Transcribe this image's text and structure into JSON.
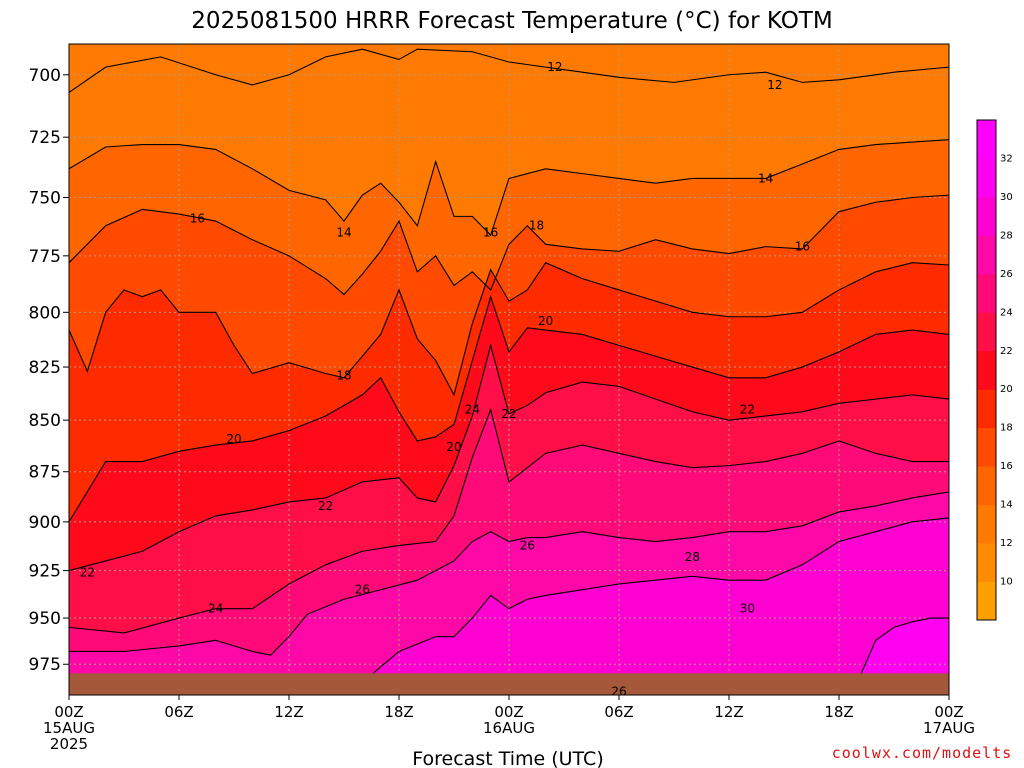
{
  "title": "2025081500 HRRR Forecast Temperature (°C) for KOTM",
  "credit": "coolwx.com/modelts",
  "chart_data": {
    "type": "heatmap",
    "title": "2025081500 HRRR Forecast Temperature (°C) for KOTM",
    "xlabel": "Forecast Time (UTC)",
    "ylabel": "",
    "x_ticks": [
      {
        "t": 0,
        "l1": "00Z",
        "l2": "15AUG",
        "l3": "2025"
      },
      {
        "t": 6,
        "l1": "06Z",
        "l2": "",
        "l3": ""
      },
      {
        "t": 12,
        "l1": "12Z",
        "l2": "",
        "l3": ""
      },
      {
        "t": 18,
        "l1": "18Z",
        "l2": "",
        "l3": ""
      },
      {
        "t": 24,
        "l1": "00Z",
        "l2": "16AUG",
        "l3": ""
      },
      {
        "t": 30,
        "l1": "06Z",
        "l2": "",
        "l3": ""
      },
      {
        "t": 36,
        "l1": "12Z",
        "l2": "",
        "l3": ""
      },
      {
        "t": 42,
        "l1": "18Z",
        "l2": "",
        "l3": ""
      },
      {
        "t": 48,
        "l1": "00Z",
        "l2": "17AUG",
        "l3": ""
      }
    ],
    "xlim": [
      0,
      48
    ],
    "y_ticks": [
      700,
      725,
      750,
      775,
      800,
      825,
      850,
      875,
      900,
      925,
      950,
      975
    ],
    "ylim": [
      688,
      992
    ],
    "y_scale": "log-pressure (inverted)",
    "surface_pressure_hPa": 980,
    "colorbar": {
      "levels": [
        8,
        10,
        12,
        14,
        16,
        18,
        20,
        22,
        24,
        26,
        28,
        30,
        32,
        34
      ],
      "tick_labels": [
        "10",
        "12",
        "14",
        "16",
        "18",
        "20",
        "22",
        "24",
        "26",
        "28",
        "30",
        "32"
      ],
      "colors": [
        "#ff9f00",
        "#ff8c00",
        "#ff7a00",
        "#ff6600",
        "#ff4a00",
        "#ff2b00",
        "#ff0a1a",
        "#ff0e48",
        "#ff0a78",
        "#ff08a8",
        "#ff00d2",
        "#ff00f0",
        "#ff00ff"
      ]
    },
    "series": [
      {
        "name": "",
        "level": 12,
        "points": [
          [
            0,
            707
          ],
          [
            2,
            697
          ],
          [
            5,
            693
          ],
          [
            8,
            700
          ],
          [
            10,
            704
          ],
          [
            12,
            700
          ],
          [
            14,
            693
          ],
          [
            16,
            690
          ],
          [
            18,
            694
          ],
          [
            19,
            690
          ],
          [
            22,
            691
          ],
          [
            24,
            695
          ],
          [
            26,
            697
          ],
          [
            28,
            699
          ],
          [
            30,
            701
          ],
          [
            33,
            703
          ],
          [
            36,
            700
          ],
          [
            38,
            699
          ],
          [
            40,
            703
          ],
          [
            42,
            702
          ],
          [
            45,
            699
          ],
          [
            48,
            697
          ]
        ]
      },
      {
        "name": "",
        "level": 14,
        "points": [
          [
            0,
            738
          ],
          [
            2,
            729
          ],
          [
            4,
            728
          ],
          [
            6,
            728
          ],
          [
            8,
            730
          ],
          [
            10,
            738
          ],
          [
            12,
            747
          ],
          [
            14,
            751
          ],
          [
            15,
            760
          ],
          [
            16,
            749
          ],
          [
            17,
            744
          ],
          [
            18,
            752
          ],
          [
            19,
            762
          ],
          [
            20,
            735
          ],
          [
            21,
            758
          ],
          [
            22,
            758
          ],
          [
            23,
            766
          ],
          [
            24,
            742
          ],
          [
            26,
            738
          ],
          [
            28,
            740
          ],
          [
            30,
            742
          ],
          [
            32,
            744
          ],
          [
            34,
            742
          ],
          [
            36,
            742
          ],
          [
            38,
            742
          ],
          [
            40,
            736
          ],
          [
            42,
            730
          ],
          [
            44,
            728
          ],
          [
            46,
            727
          ],
          [
            48,
            726
          ]
        ]
      },
      {
        "name": "",
        "level": 16,
        "points": [
          [
            0,
            778
          ],
          [
            2,
            762
          ],
          [
            4,
            755
          ],
          [
            6,
            757
          ],
          [
            8,
            760
          ],
          [
            10,
            768
          ],
          [
            12,
            775
          ],
          [
            14,
            785
          ],
          [
            15,
            792
          ],
          [
            16,
            783
          ],
          [
            17,
            773
          ],
          [
            18,
            760
          ],
          [
            19,
            782
          ],
          [
            20,
            775
          ],
          [
            21,
            788
          ],
          [
            22,
            782
          ],
          [
            23,
            790
          ],
          [
            24,
            770
          ],
          [
            25,
            762
          ],
          [
            26,
            770
          ],
          [
            28,
            772
          ],
          [
            30,
            773
          ],
          [
            32,
            768
          ],
          [
            34,
            772
          ],
          [
            36,
            774
          ],
          [
            38,
            771
          ],
          [
            40,
            772
          ],
          [
            42,
            756
          ],
          [
            44,
            752
          ],
          [
            46,
            750
          ],
          [
            48,
            749
          ]
        ]
      },
      {
        "name": "",
        "level": 18,
        "points": [
          [
            0,
            808
          ],
          [
            1,
            827
          ],
          [
            2,
            800
          ],
          [
            3,
            790
          ],
          [
            4,
            793
          ],
          [
            5,
            790
          ],
          [
            6,
            800
          ],
          [
            8,
            800
          ],
          [
            9,
            815
          ],
          [
            10,
            828
          ],
          [
            12,
            823
          ],
          [
            14,
            828
          ],
          [
            15,
            830
          ],
          [
            16,
            820
          ],
          [
            17,
            810
          ],
          [
            18,
            790
          ],
          [
            19,
            812
          ],
          [
            20,
            822
          ],
          [
            21,
            838
          ],
          [
            22,
            805
          ],
          [
            23,
            781
          ],
          [
            24,
            795
          ],
          [
            25,
            790
          ],
          [
            26,
            778
          ],
          [
            28,
            785
          ],
          [
            30,
            790
          ],
          [
            32,
            795
          ],
          [
            34,
            800
          ],
          [
            36,
            802
          ],
          [
            38,
            802
          ],
          [
            40,
            800
          ],
          [
            42,
            790
          ],
          [
            44,
            782
          ],
          [
            46,
            778
          ],
          [
            48,
            779
          ]
        ]
      },
      {
        "name": "",
        "level": 20,
        "points": [
          [
            0,
            900
          ],
          [
            2,
            870
          ],
          [
            4,
            870
          ],
          [
            6,
            865
          ],
          [
            8,
            862
          ],
          [
            10,
            860
          ],
          [
            12,
            855
          ],
          [
            14,
            848
          ],
          [
            16,
            838
          ],
          [
            17,
            830
          ],
          [
            18,
            846
          ],
          [
            19,
            860
          ],
          [
            20,
            858
          ],
          [
            21,
            852
          ],
          [
            22,
            822
          ],
          [
            23,
            793
          ],
          [
            24,
            818
          ],
          [
            25,
            807
          ],
          [
            26,
            808
          ],
          [
            28,
            810
          ],
          [
            30,
            815
          ],
          [
            32,
            820
          ],
          [
            34,
            825
          ],
          [
            36,
            830
          ],
          [
            38,
            830
          ],
          [
            40,
            825
          ],
          [
            42,
            818
          ],
          [
            44,
            810
          ],
          [
            46,
            808
          ],
          [
            48,
            810
          ]
        ]
      },
      {
        "name": "",
        "level": 22,
        "points": [
          [
            0,
            925
          ],
          [
            2,
            920
          ],
          [
            4,
            915
          ],
          [
            6,
            905
          ],
          [
            8,
            897
          ],
          [
            10,
            894
          ],
          [
            12,
            890
          ],
          [
            14,
            888
          ],
          [
            16,
            880
          ],
          [
            18,
            878
          ],
          [
            19,
            888
          ],
          [
            20,
            890
          ],
          [
            21,
            872
          ],
          [
            22,
            848
          ],
          [
            23,
            815
          ],
          [
            24,
            847
          ],
          [
            25,
            843
          ],
          [
            26,
            837
          ],
          [
            28,
            832
          ],
          [
            30,
            834
          ],
          [
            32,
            840
          ],
          [
            34,
            846
          ],
          [
            36,
            850
          ],
          [
            38,
            848
          ],
          [
            40,
            846
          ],
          [
            42,
            842
          ],
          [
            44,
            840
          ],
          [
            46,
            838
          ],
          [
            48,
            840
          ]
        ]
      },
      {
        "name": "",
        "level": 24,
        "points": [
          [
            0,
            955
          ],
          [
            3,
            958
          ],
          [
            6,
            950
          ],
          [
            8,
            945
          ],
          [
            10,
            945
          ],
          [
            12,
            932
          ],
          [
            14,
            922
          ],
          [
            16,
            915
          ],
          [
            18,
            912
          ],
          [
            20,
            910
          ],
          [
            21,
            897
          ],
          [
            22,
            868
          ],
          [
            23,
            845
          ],
          [
            24,
            880
          ],
          [
            25,
            873
          ],
          [
            26,
            866
          ],
          [
            28,
            862
          ],
          [
            30,
            866
          ],
          [
            32,
            870
          ],
          [
            34,
            873
          ],
          [
            36,
            872
          ],
          [
            38,
            870
          ],
          [
            40,
            866
          ],
          [
            42,
            860
          ],
          [
            44,
            866
          ],
          [
            46,
            870
          ],
          [
            48,
            870
          ]
        ]
      },
      {
        "name": "",
        "level": 26,
        "points": [
          [
            0,
            968
          ],
          [
            3,
            968
          ],
          [
            6,
            965
          ],
          [
            8,
            962
          ],
          [
            9,
            965
          ],
          [
            10,
            968
          ],
          [
            11,
            970
          ],
          [
            12,
            960
          ],
          [
            13,
            948
          ],
          [
            15,
            940
          ],
          [
            17,
            935
          ],
          [
            19,
            930
          ],
          [
            21,
            920
          ],
          [
            22,
            910
          ],
          [
            23,
            905
          ],
          [
            24,
            910
          ],
          [
            25,
            908
          ],
          [
            26,
            908
          ],
          [
            28,
            905
          ],
          [
            30,
            908
          ],
          [
            32,
            910
          ],
          [
            34,
            908
          ],
          [
            36,
            905
          ],
          [
            38,
            905
          ],
          [
            40,
            902
          ],
          [
            42,
            895
          ],
          [
            44,
            892
          ],
          [
            46,
            888
          ],
          [
            48,
            885
          ]
        ]
      },
      {
        "name": "",
        "level": 28,
        "points": [
          [
            16,
            985
          ],
          [
            18,
            968
          ],
          [
            20,
            960
          ],
          [
            21,
            960
          ],
          [
            22,
            950
          ],
          [
            23,
            938
          ],
          [
            24,
            945
          ],
          [
            25,
            940
          ],
          [
            26,
            938
          ],
          [
            28,
            935
          ],
          [
            30,
            932
          ],
          [
            32,
            930
          ],
          [
            34,
            928
          ],
          [
            36,
            930
          ],
          [
            38,
            930
          ],
          [
            40,
            922
          ],
          [
            42,
            910
          ],
          [
            44,
            905
          ],
          [
            46,
            900
          ],
          [
            48,
            898
          ]
        ]
      },
      {
        "name": "",
        "level": 30,
        "points": [
          [
            43,
            985
          ],
          [
            44,
            962
          ],
          [
            45,
            955
          ],
          [
            46,
            952
          ],
          [
            47,
            950
          ],
          [
            48,
            950
          ]
        ]
      }
    ],
    "contour_labels": [
      {
        "text": "12",
        "t": 26.5,
        "p": 697
      },
      {
        "text": "12",
        "t": 38.5,
        "p": 704
      },
      {
        "text": "14",
        "t": 38,
        "p": 742
      },
      {
        "text": "14",
        "t": 15,
        "p": 765
      },
      {
        "text": "16",
        "t": 7,
        "p": 759
      },
      {
        "text": "16",
        "t": 23,
        "p": 765
      },
      {
        "text": "16",
        "t": 40,
        "p": 771
      },
      {
        "text": "18",
        "t": 25.5,
        "p": 762
      },
      {
        "text": "18",
        "t": 15,
        "p": 829
      },
      {
        "text": "20",
        "t": 26,
        "p": 804
      },
      {
        "text": "20",
        "t": 9,
        "p": 859
      },
      {
        "text": "20",
        "t": 21,
        "p": 863
      },
      {
        "text": "22",
        "t": 37,
        "p": 845
      },
      {
        "text": "22",
        "t": 24,
        "p": 847
      },
      {
        "text": "24",
        "t": 22,
        "p": 845
      },
      {
        "text": "22",
        "t": 14,
        "p": 892
      },
      {
        "text": "22",
        "t": 1,
        "p": 926
      },
      {
        "text": "24",
        "t": 8,
        "p": 945
      },
      {
        "text": "26",
        "t": 25,
        "p": 912
      },
      {
        "text": "26",
        "t": 16,
        "p": 935
      },
      {
        "text": "28",
        "t": 34,
        "p": 918
      },
      {
        "text": "30",
        "t": 37,
        "p": 945
      },
      {
        "text": "26",
        "t": 30,
        "p": 990
      }
    ]
  }
}
